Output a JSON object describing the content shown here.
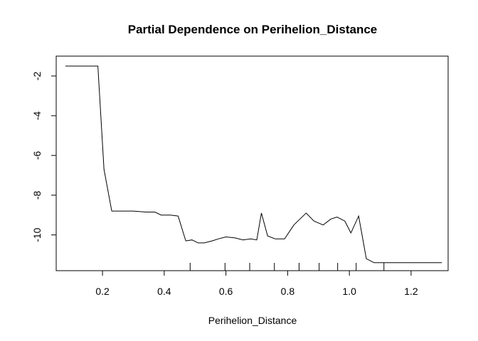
{
  "chart_data": {
    "type": "line",
    "title": "Partial Dependence on  Perihelion_Distance",
    "xlabel": "Perihelion_Distance",
    "ylabel": "",
    "xlim": [
      0.05,
      1.32
    ],
    "ylim": [
      -11.8,
      -1.0
    ],
    "xticks": [
      0.2,
      0.4,
      0.6,
      0.8,
      1.0,
      1.2
    ],
    "xtick_labels": [
      "0.2",
      "0.4",
      "0.6",
      "0.8",
      "1.0",
      "1.2"
    ],
    "yticks": [
      -10,
      -8,
      -6,
      -4,
      -2
    ],
    "ytick_labels": [
      "-10",
      "-8",
      "-6",
      "-4",
      "-2"
    ],
    "grid": false,
    "legend": "none",
    "line_color": "#000000",
    "rug": [
      0.484,
      0.597,
      0.677,
      0.757,
      0.837,
      0.902,
      0.962,
      1.022,
      1.112
    ],
    "series": [
      {
        "x": [
          0.08,
          0.185,
          0.205,
          0.23,
          0.26,
          0.3,
          0.34,
          0.37,
          0.39,
          0.42,
          0.445,
          0.47,
          0.49,
          0.51,
          0.53,
          0.555,
          0.575,
          0.6,
          0.63,
          0.655,
          0.68,
          0.7,
          0.715,
          0.735,
          0.76,
          0.79,
          0.82,
          0.84,
          0.86,
          0.885,
          0.915,
          0.94,
          0.96,
          0.985,
          1.005,
          1.03,
          1.055,
          1.08,
          1.3
        ],
        "y": [
          -1.5,
          -1.5,
          -6.7,
          -8.8,
          -8.8,
          -8.8,
          -8.85,
          -8.85,
          -9.0,
          -9.0,
          -9.05,
          -10.3,
          -10.25,
          -10.4,
          -10.4,
          -10.3,
          -10.2,
          -10.1,
          -10.15,
          -10.25,
          -10.2,
          -10.25,
          -8.9,
          -10.05,
          -10.2,
          -10.2,
          -9.5,
          -9.2,
          -8.9,
          -9.3,
          -9.5,
          -9.2,
          -9.1,
          -9.3,
          -9.9,
          -9.05,
          -11.2,
          -11.4,
          -11.4
        ]
      }
    ]
  }
}
